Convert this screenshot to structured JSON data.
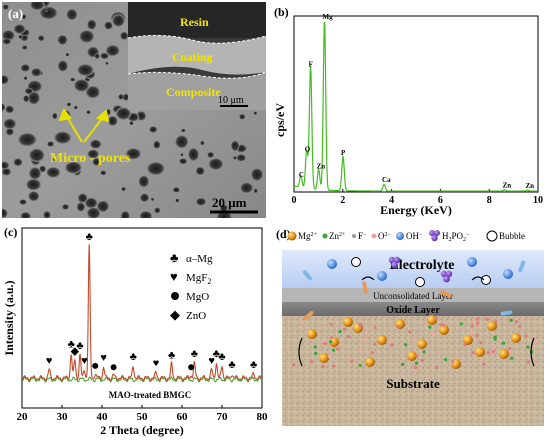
{
  "figure": {
    "panels": {
      "a": {
        "label": "(a)",
        "inset_labels": {
          "resin": "Resin",
          "coating": "Coating",
          "composite": "Composite"
        },
        "inset_scale_bar": "10 μm",
        "annotation": "Micro - pores",
        "scale_bar": "20 μm",
        "colors": {
          "annotation": "#f2e600",
          "arrow": "#e8e000"
        }
      },
      "b": {
        "label": "(b)",
        "chart_data": {
          "type": "line",
          "xlabel": "Energy (KeV)",
          "ylabel": "cps/eV",
          "xlim": [
            0,
            10
          ],
          "x_ticks": [
            "0",
            "2",
            "4",
            "6",
            "8",
            "10"
          ],
          "series": [
            {
              "color": "#44bb22",
              "peaks": [
                {
                  "label": "C",
                  "x": 0.28,
                  "y": 0.07
                },
                {
                  "label": "O",
                  "x": 0.52,
                  "y": 0.22
                },
                {
                  "label": "F",
                  "x": 0.68,
                  "y": 0.72
                },
                {
                  "label": "Zn",
                  "x": 1.01,
                  "y": 0.12
                },
                {
                  "label": "Mg",
                  "x": 1.25,
                  "y": 1.0
                },
                {
                  "label": "P",
                  "x": 2.01,
                  "y": 0.2
                },
                {
                  "label": "Ca",
                  "x": 3.69,
                  "y": 0.04
                },
                {
                  "label": "Zn",
                  "x": 8.63,
                  "y": 0.008
                },
                {
                  "label": "Zn",
                  "x": 9.57,
                  "y": 0.006
                }
              ]
            }
          ]
        }
      },
      "c": {
        "label": "(c)",
        "chart_data": {
          "type": "line",
          "xlabel": "2 Theta (degree)",
          "ylabel": "Intensity (a.u.)",
          "xlim": [
            20,
            80
          ],
          "x_ticks": [
            "20",
            "30",
            "40",
            "50",
            "60",
            "70",
            "80"
          ],
          "series": [
            {
              "name": "MAO-treated BMGC",
              "color": "#c04a2a",
              "peaks": [
                {
                  "x": 26.8,
                  "y": 0.06,
                  "phase": "MgF2"
                },
                {
                  "x": 32.3,
                  "y": 0.18,
                  "phase": "α-Mg"
                },
                {
                  "x": 33.2,
                  "y": 0.13,
                  "phase": "ZnO"
                },
                {
                  "x": 34.5,
                  "y": 0.17,
                  "phase": "α-Mg"
                },
                {
                  "x": 35.6,
                  "y": 0.06,
                  "phase": "MgF2"
                },
                {
                  "x": 36.8,
                  "y": 0.97,
                  "phase": "α-Mg"
                },
                {
                  "x": 38.3,
                  "y": 0.03,
                  "phase": "MgO"
                },
                {
                  "x": 40.4,
                  "y": 0.08,
                  "phase": "MgF2"
                },
                {
                  "x": 42.9,
                  "y": 0.02,
                  "phase": "MgO"
                },
                {
                  "x": 47.8,
                  "y": 0.09,
                  "phase": "α-Mg"
                },
                {
                  "x": 53.5,
                  "y": 0.04,
                  "phase": "MgF2"
                },
                {
                  "x": 57.4,
                  "y": 0.1,
                  "phase": "α-Mg"
                },
                {
                  "x": 62.3,
                  "y": 0.02,
                  "phase": "MgO"
                },
                {
                  "x": 63.1,
                  "y": 0.11,
                  "phase": "α-Mg"
                },
                {
                  "x": 67.4,
                  "y": 0.06,
                  "phase": "MgF2"
                },
                {
                  "x": 68.6,
                  "y": 0.11,
                  "phase": "α-Mg"
                },
                {
                  "x": 70.0,
                  "y": 0.09,
                  "phase": "α-Mg"
                },
                {
                  "x": 72.5,
                  "y": 0.03,
                  "phase": "α-Mg"
                },
                {
                  "x": 77.9,
                  "y": 0.03,
                  "phase": "α-Mg"
                }
              ]
            }
          ],
          "legend": {
            "position": "right",
            "entries": [
              {
                "symbol": "club",
                "label": "α–Mg"
              },
              {
                "symbol": "heart",
                "label": "MgF",
                "sub": "2"
              },
              {
                "symbol": "circle",
                "label": "MgO"
              },
              {
                "symbol": "diamond",
                "label": "ZnO"
              }
            ]
          }
        }
      },
      "d": {
        "label": "(d)",
        "legend": [
          {
            "icon": "orange-ball",
            "label": "Mg",
            "sup": "2+"
          },
          {
            "icon": "green-dot",
            "label": "Zn",
            "sup": "2+"
          },
          {
            "icon": "grey-dot",
            "label": "F",
            "sup": "−"
          },
          {
            "icon": "pink-dot",
            "label": "O",
            "sup": "2−"
          },
          {
            "icon": "blue-drop",
            "label": "OH",
            "sup": "−"
          },
          {
            "icon": "purple-cluster",
            "label": "H",
            "sub": "2",
            "label2": "PO",
            "sub2": "2",
            "sup": "−"
          },
          {
            "icon": "bubble",
            "label": "Bubble"
          }
        ],
        "layers": {
          "electrolyte": "Electrolyte",
          "unconsolidated": "Unconsolidated Layer",
          "oxide": "Oxide Layer",
          "substrate": "Substrate"
        }
      }
    }
  }
}
